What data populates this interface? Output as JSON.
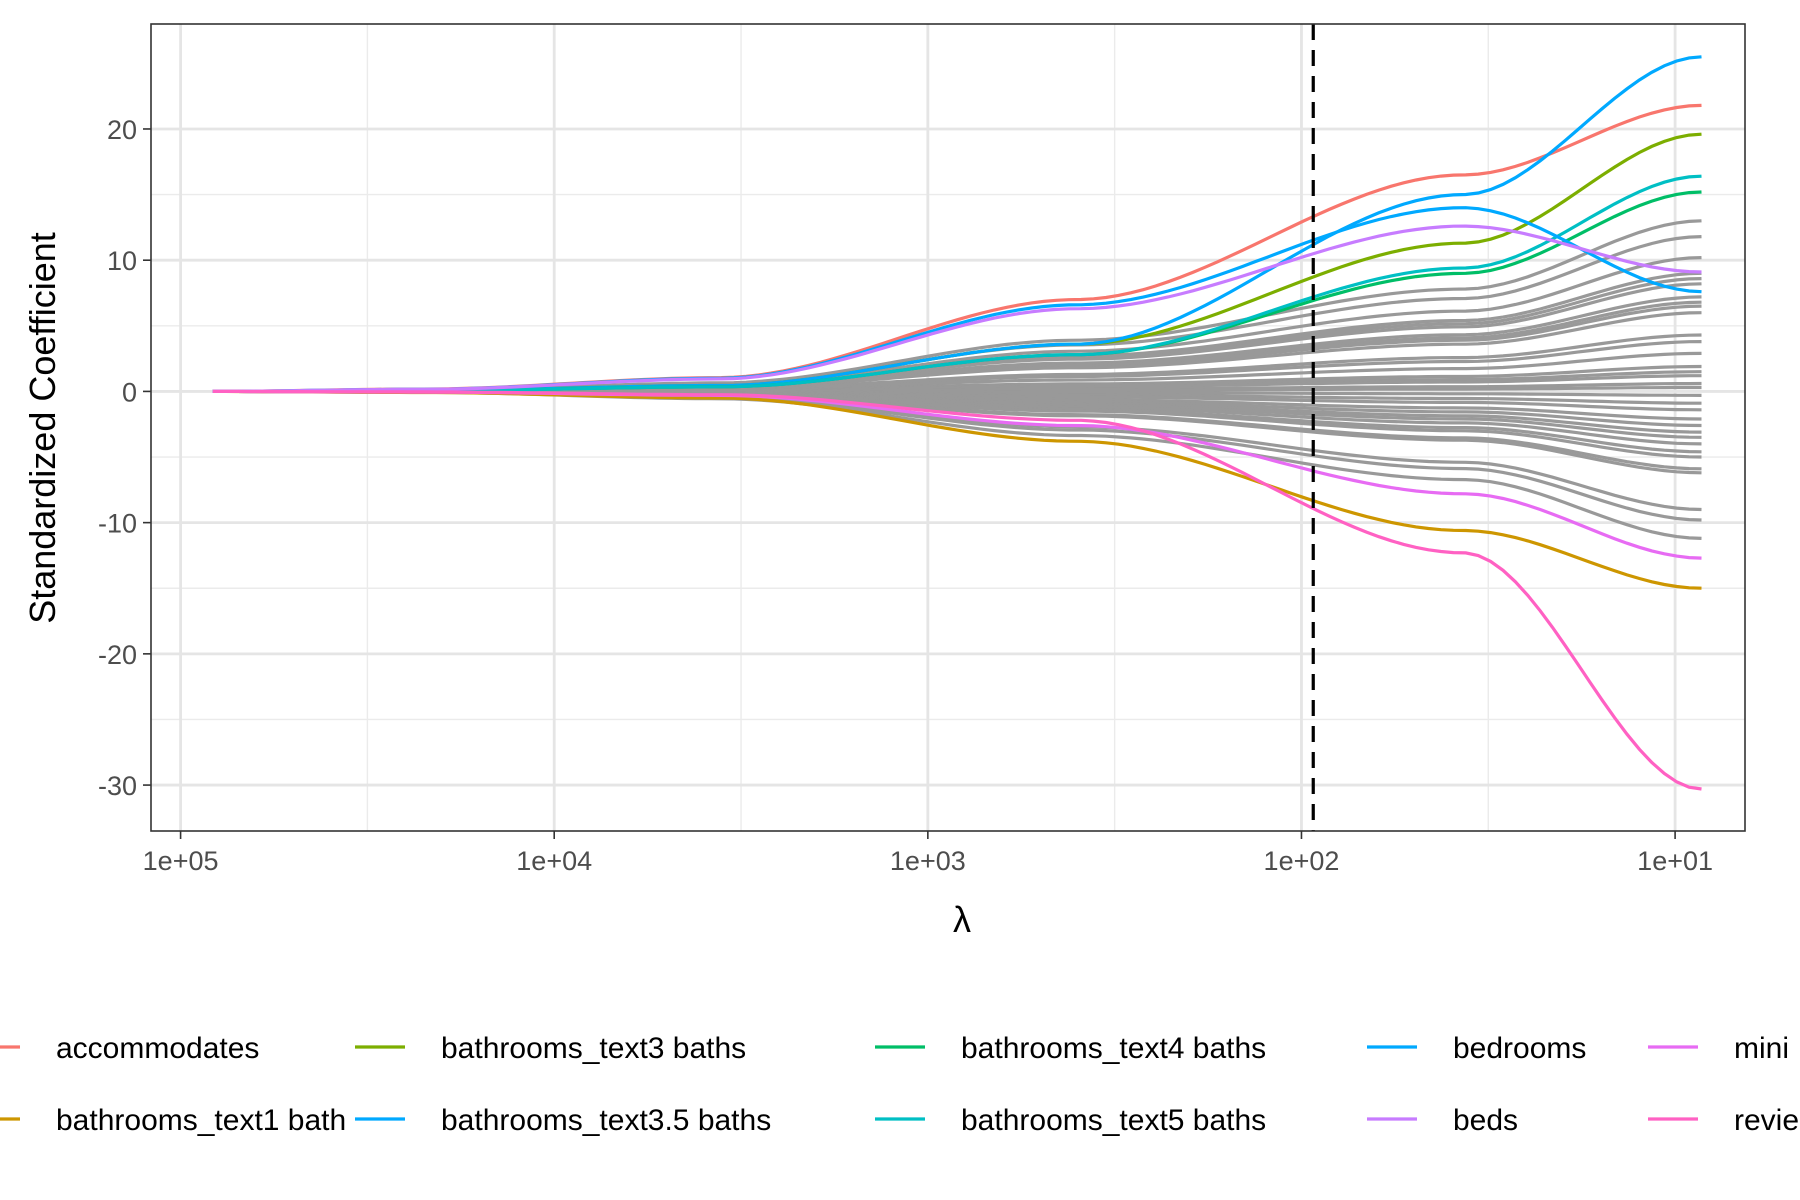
{
  "chart_data": {
    "type": "line",
    "title": "",
    "xlabel": "λ",
    "ylabel": "Standardized Coefficient",
    "x_scale": "log10-reversed",
    "xlim": [
      120000,
      6.5
    ],
    "ylim": [
      -33.5,
      28
    ],
    "x_ticks": [
      {
        "value": 100000,
        "label": "1e+05"
      },
      {
        "value": 10000,
        "label": "1e+04"
      },
      {
        "value": 1000,
        "label": "1e+03"
      },
      {
        "value": 100,
        "label": "1e+02"
      },
      {
        "value": 10,
        "label": "1e+01"
      }
    ],
    "y_ticks": [
      {
        "value": 20,
        "label": "20"
      },
      {
        "value": 10,
        "label": "10"
      },
      {
        "value": 0,
        "label": "0"
      },
      {
        "value": -10,
        "label": "-10"
      },
      {
        "value": -20,
        "label": "-20"
      },
      {
        "value": -30,
        "label": "-30"
      }
    ],
    "grid": true,
    "vline": {
      "x": 93,
      "style": "dashed",
      "color": "#000000"
    },
    "x_range": [
      82000,
      8.5
    ],
    "legend_position": "bottom",
    "series": [
      {
        "name": "accommodates",
        "color": "#F8766D",
        "values": [
          0,
          0.18,
          1.05,
          7,
          16.5,
          21.8
        ]
      },
      {
        "name": "bathrooms_text1 bath",
        "color": "#CD9600",
        "values": [
          0,
          -0.08,
          -0.5,
          -3.8,
          -10.6,
          -15
        ]
      },
      {
        "name": "bathrooms_text3 baths",
        "color": "#7CAE00",
        "values": [
          0,
          0.08,
          0.45,
          3.6,
          11.3,
          19.6
        ]
      },
      {
        "name": "bathrooms_text3.5 baths",
        "color": "#00A9FF",
        "values": [
          0,
          0.06,
          0.45,
          3.6,
          15,
          25.5
        ]
      },
      {
        "name": "bathrooms_text4 baths",
        "color": "#00BE67",
        "values": [
          0,
          0.05,
          0.35,
          2.8,
          9,
          15.2
        ]
      },
      {
        "name": "bathrooms_text5 baths",
        "color": "#00BFC4",
        "values": [
          0,
          0.05,
          0.35,
          2.8,
          9.4,
          16.4
        ]
      },
      {
        "name": "bedrooms",
        "color": "#00A9FF",
        "values": [
          0,
          0.16,
          1.0,
          6.6,
          14,
          7.6
        ]
      },
      {
        "name": "beds",
        "color": "#C77CFF",
        "values": [
          0,
          0.16,
          0.95,
          6.3,
          12.6,
          9.1
        ]
      },
      {
        "name": "mini",
        "color": "#E76BF3",
        "values": [
          0,
          -0.05,
          -0.3,
          -2.6,
          -7.8,
          -12.7
        ]
      },
      {
        "name": "revie",
        "color": "#FF61C3",
        "values": [
          0,
          -0.04,
          -0.25,
          -2.2,
          -12.3,
          -30.3
        ]
      }
    ],
    "gray_series": {
      "color": "#999999",
      "values_at_right_end": [
        13,
        11.8,
        10.2,
        9,
        8.6,
        8.2,
        7.2,
        6.8,
        6.5,
        6,
        4.3,
        3.8,
        2.9,
        1.9,
        1.5,
        1.2,
        0.6,
        0.3,
        -0.3,
        -0.9,
        -1.4,
        -2.1,
        -2.6,
        -3.1,
        -3.5,
        -4,
        -4.6,
        -5,
        -5.9,
        -6.2,
        -9,
        -9.8,
        -11.2
      ]
    }
  },
  "legend": {
    "rows": [
      [
        "accommodates",
        "bathrooms_text3 baths",
        "bathrooms_text4 baths",
        "bedrooms",
        "mini"
      ],
      [
        "bathrooms_text1 bath",
        "bathrooms_text3.5 baths",
        "bathrooms_text5 baths",
        "beds",
        "revie"
      ]
    ]
  }
}
